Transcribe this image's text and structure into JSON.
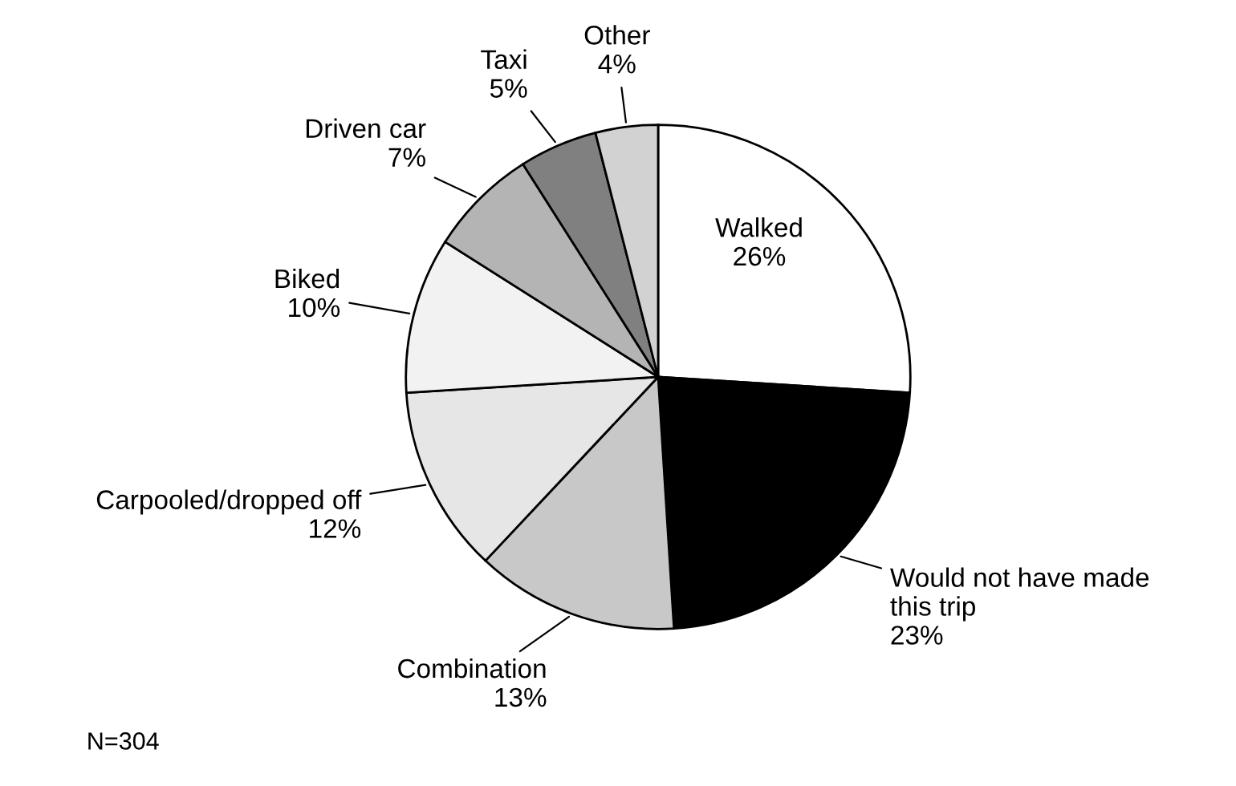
{
  "chart_data": {
    "type": "pie",
    "categories": [
      "Walked",
      "Would not have made\nthis trip",
      "Combination",
      "Carpooled/dropped off",
      "Biked",
      "Driven car",
      "Taxi",
      "Other"
    ],
    "values": [
      26,
      23,
      13,
      12,
      10,
      7,
      5,
      4
    ],
    "value_labels": [
      "26%",
      "23%",
      "13%",
      "12%",
      "10%",
      "7%",
      "5%",
      "4%"
    ],
    "colors": [
      "#ffffff",
      "#000000",
      "#c8c8c8",
      "#e6e6e6",
      "#f2f2f2",
      "#b4b4b4",
      "#808080",
      "#d2d2d2"
    ],
    "annotations": [
      "N=304"
    ],
    "legend": false
  }
}
